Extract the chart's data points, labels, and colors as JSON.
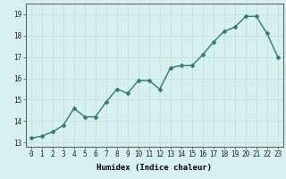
{
  "x": [
    0,
    1,
    2,
    3,
    4,
    5,
    6,
    7,
    8,
    9,
    10,
    11,
    12,
    13,
    14,
    15,
    16,
    17,
    18,
    19,
    20,
    21,
    22,
    23
  ],
  "y": [
    13.2,
    13.3,
    13.5,
    13.8,
    14.6,
    14.2,
    14.2,
    14.9,
    15.5,
    15.3,
    15.9,
    15.9,
    15.5,
    16.5,
    16.6,
    16.6,
    17.1,
    17.7,
    18.2,
    18.4,
    18.9,
    18.9,
    18.1,
    17.0
  ],
  "line_color": "#2e7d6e",
  "marker_color": "#2e7d6e",
  "bg_color": "#d6f0ef",
  "grid_color": "#c0dedd",
  "xlabel": "Humidex (Indice chaleur)",
  "ylim": [
    12.8,
    19.5
  ],
  "xlim": [
    -0.5,
    23.5
  ],
  "yticks": [
    13,
    14,
    15,
    16,
    17,
    18,
    19
  ],
  "xticks": [
    0,
    1,
    2,
    3,
    4,
    5,
    6,
    7,
    8,
    9,
    10,
    11,
    12,
    13,
    14,
    15,
    16,
    17,
    18,
    19,
    20,
    21,
    22,
    23
  ],
  "xlabel_fontsize": 6.5,
  "tick_fontsize": 5.5,
  "linewidth": 1.0,
  "markersize": 2.5
}
